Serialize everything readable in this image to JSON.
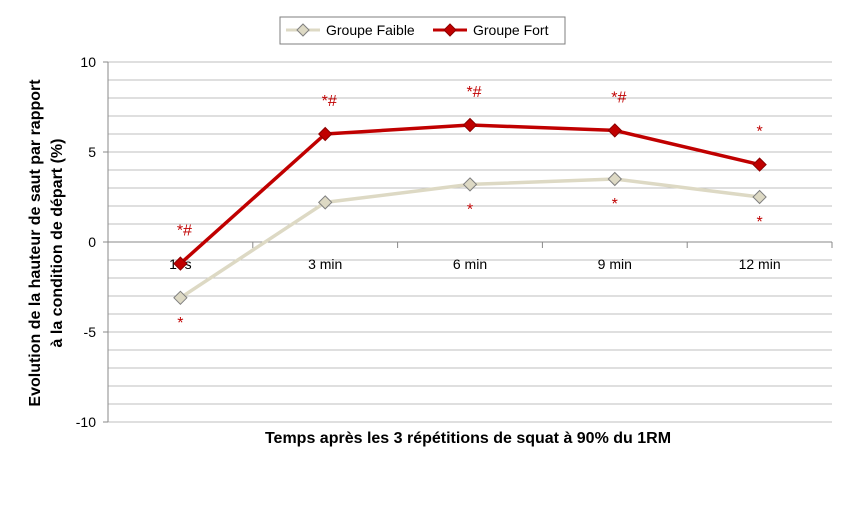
{
  "chart_data": {
    "type": "line",
    "categories": [
      "10s",
      "3 min",
      "6 min",
      "9 min",
      "12 min"
    ],
    "series": [
      {
        "name": "Groupe Faible",
        "values": [
          -3.1,
          2.2,
          3.2,
          3.5,
          2.5
        ],
        "color": "#ddd9c4",
        "marker_fill": "#ddd9c4",
        "marker_stroke": "#7f7f7f",
        "annotations": [
          "*",
          "",
          "*",
          "*",
          "*"
        ]
      },
      {
        "name": "Groupe Fort",
        "values": [
          -1.2,
          6.0,
          6.5,
          6.2,
          4.3
        ],
        "color": "#c00000",
        "marker_fill": "#c00000",
        "marker_stroke": "#8b0000",
        "annotations": [
          "*#",
          "*#",
          "*#",
          "*#",
          "*"
        ]
      }
    ],
    "xlabel": "Temps après les 3 répétitions de squat à 90% du 1RM",
    "ylabel_lines": [
      "Evolution de la hauteur de saut par rapport",
      "à la condition de départ (%)"
    ],
    "ylim": [
      -10,
      10
    ],
    "yticks": [
      10,
      5,
      0,
      -5,
      -10
    ],
    "grid_step": 1,
    "grid": true,
    "legend_position": "top-center",
    "annotation_color": "#c00000"
  }
}
